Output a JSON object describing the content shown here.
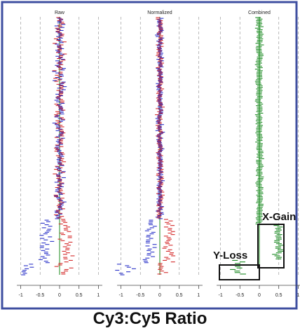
{
  "caption": "Cy3:Cy5 Ratio",
  "colors": {
    "frame": "#3f4fa0",
    "raw_red": "#d42a2a",
    "raw_blue": "#2a32c8",
    "combined_green": "#1b8a22",
    "center_line": "#1a8a1a",
    "gridline": "#aaaaaa",
    "box": "#111111"
  },
  "chart_data": [
    {
      "type": "scatter",
      "title": "Raw",
      "xlabel": "",
      "xlim": [
        -1.3,
        1.3
      ],
      "x_ticks": [
        "-1",
        "-0.5",
        "0",
        "0.5",
        "1"
      ],
      "grid": true,
      "series": [
        {
          "color": "red",
          "trend": "scattered around 0, shifting to about +0.2 in the lowest rows"
        },
        {
          "color": "blue",
          "trend": "scattered around 0, shifting to about -0.4 in the lowest rows"
        }
      ]
    },
    {
      "type": "scatter",
      "title": "Normalized",
      "xlabel": "",
      "xlim": [
        -1.3,
        1.3
      ],
      "x_ticks": [
        "-1",
        "-0.5",
        "0",
        "0.5",
        "1"
      ],
      "grid": true,
      "series": [
        {
          "color": "red",
          "trend": "centered on 0, spreading to about +0.3 in the lowest rows"
        },
        {
          "color": "blue",
          "trend": "centered on 0, spreading to about -0.3 in the lowest rows"
        }
      ]
    },
    {
      "type": "scatter",
      "title": "Combined",
      "xlabel": "",
      "xlim": [
        -1.3,
        1.3
      ],
      "x_ticks": [
        "-1",
        "-0.5",
        "0",
        "0.5",
        "1"
      ],
      "grid": true,
      "series": [
        {
          "color": "green",
          "trend": "centered on 0; rows in the X-Gain box shift to about +0.5; rows in the Y-Loss box shift to about -0.5"
        }
      ],
      "annotations": [
        "X-Gain",
        "Y-Loss"
      ]
    }
  ]
}
